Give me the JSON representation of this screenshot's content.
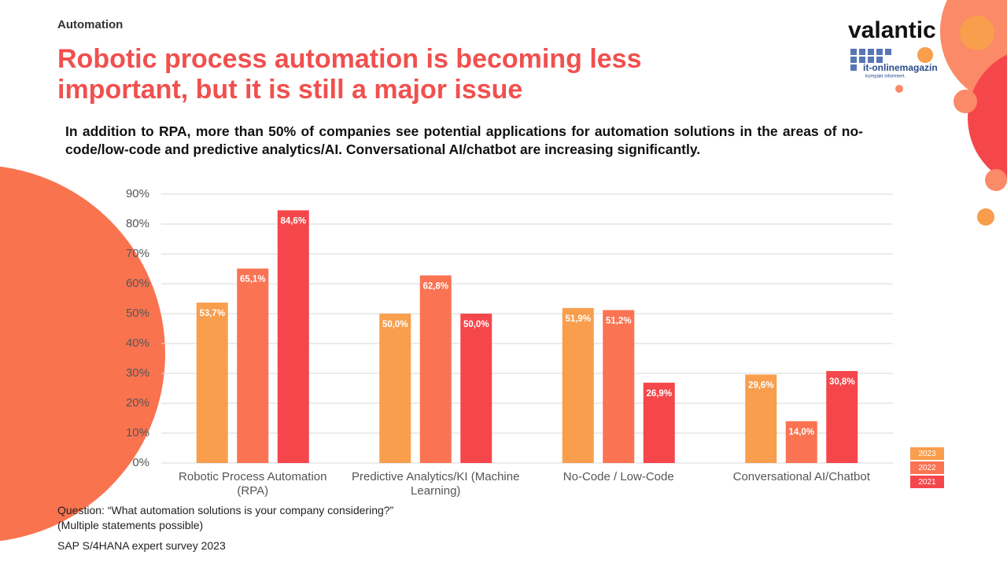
{
  "header": {
    "section": "Automation",
    "title": "Robotic process automation is becoming less important, but it is still a major issue",
    "subtitle": "In addition to RPA, more than 50% of companies see potential applications for automation solutions in the areas of no-code/low-code and predictive analytics/AI. Conversational AI/chatbot are increasing significantly."
  },
  "logo": {
    "brand": "valantic",
    "partner": "it-onlinemagazin",
    "partner_tagline": "kompakt informiert."
  },
  "chart_data": {
    "type": "bar",
    "categories": [
      "Robotic Process Automation (RPA)",
      "Predictive Analytics/KI (Machine Learning)",
      "No-Code / Low-Code",
      "Conversational AI/Chatbot"
    ],
    "series": [
      {
        "name": "2023",
        "color": "#f89e4d",
        "values": [
          53.7,
          50.0,
          51.9,
          29.6
        ],
        "value_labels": [
          "53,7%",
          "50,0%",
          "51,9%",
          "29,6%"
        ]
      },
      {
        "name": "2022",
        "color": "#fa7352",
        "values": [
          65.1,
          62.8,
          51.2,
          14.0
        ],
        "value_labels": [
          "65,1%",
          "62,8%",
          "51,2%",
          "14,0%"
        ]
      },
      {
        "name": "2021",
        "color": "#f5474b",
        "values": [
          84.6,
          50.0,
          26.9,
          30.8
        ],
        "value_labels": [
          "84,6%",
          "50,0%",
          "26,9%",
          "30,8%"
        ]
      }
    ],
    "ylim": [
      0,
      90
    ],
    "yticks": [
      {
        "value": 0,
        "label": "0%"
      },
      {
        "value": 10,
        "label": "10%"
      },
      {
        "value": 20,
        "label": "20%"
      },
      {
        "value": 30,
        "label": "30%"
      },
      {
        "value": 40,
        "label": "40%"
      },
      {
        "value": 50,
        "label": "50%"
      },
      {
        "value": 60,
        "label": "60%"
      },
      {
        "value": 70,
        "label": "70%"
      },
      {
        "value": 80,
        "label": "80%"
      },
      {
        "value": 90,
        "label": "90%"
      }
    ],
    "grid": true,
    "legend": "bottom-right"
  },
  "footer": {
    "question": "Question: “What automation solutions is your company considering?”",
    "note": "(Multiple statements possible)",
    "source": "SAP S/4HANA expert survey 2023"
  }
}
